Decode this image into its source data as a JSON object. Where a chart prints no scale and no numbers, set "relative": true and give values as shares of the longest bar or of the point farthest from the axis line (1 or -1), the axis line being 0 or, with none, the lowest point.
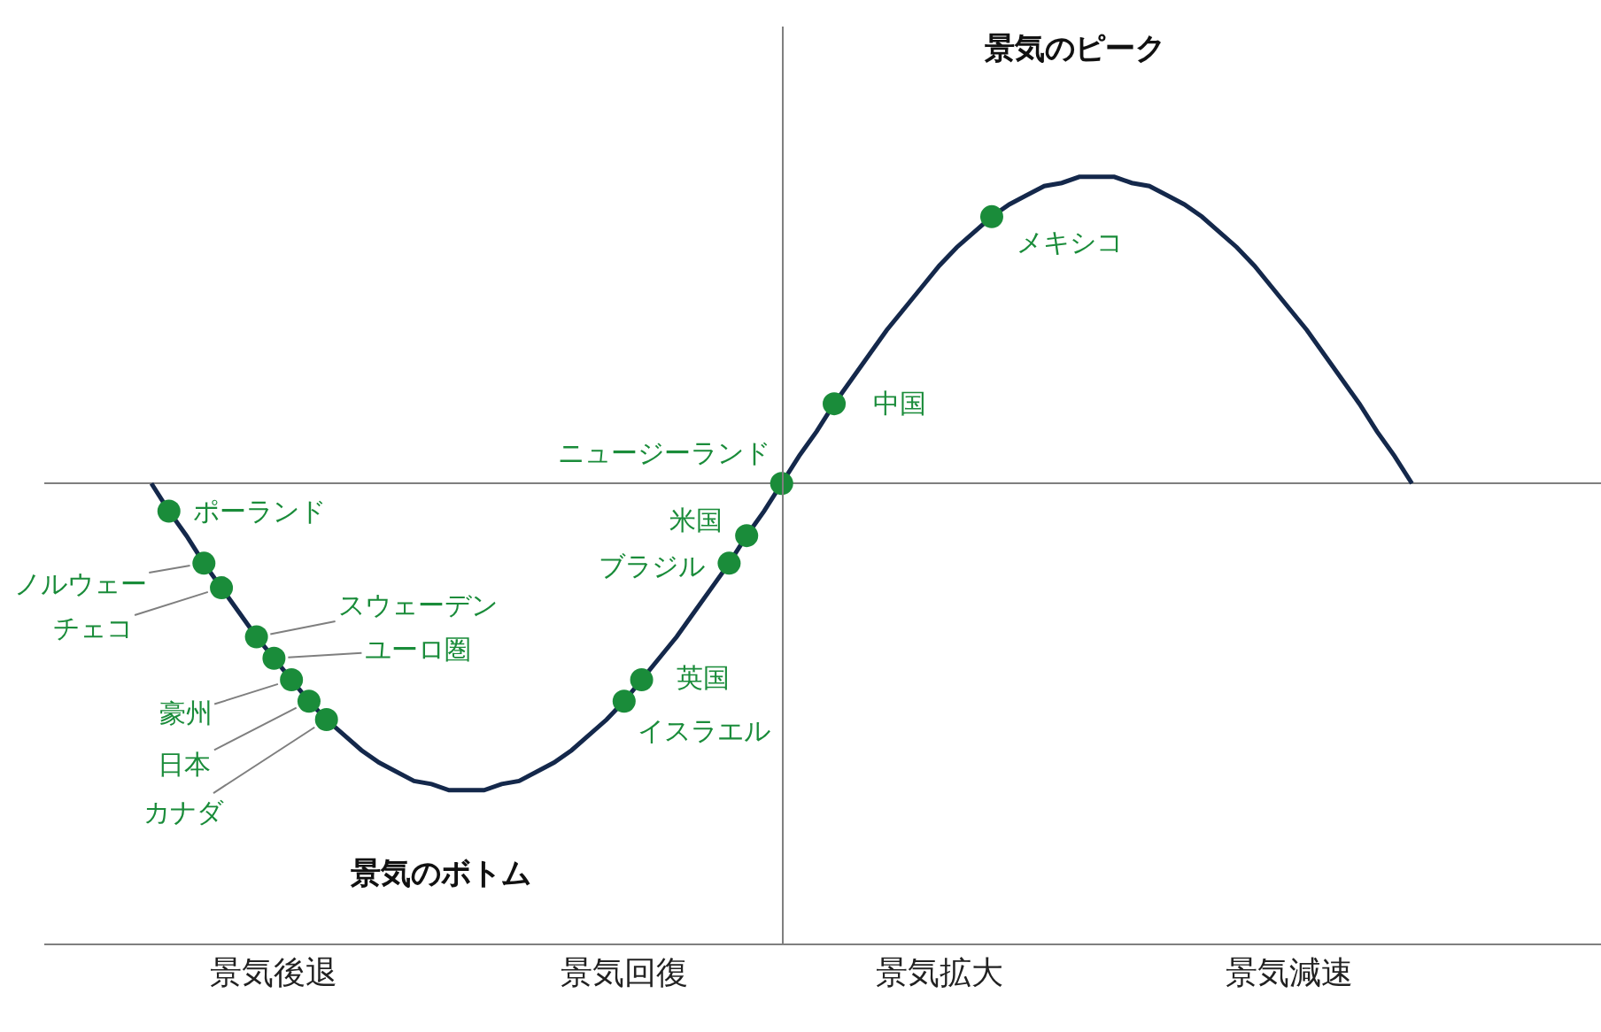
{
  "chart_data": {
    "type": "line",
    "relative": true,
    "grid": false,
    "tick_labels": "x",
    "ylim": [
      -1.5,
      1.49
    ],
    "categories": [
      null,
      null,
      null,
      null,
      null,
      null,
      null,
      "景気後退",
      null,
      null,
      null,
      null,
      null,
      null,
      null,
      null,
      null,
      null,
      null,
      null,
      null,
      null,
      null,
      null,
      null,
      null,
      null,
      "景気回復",
      null,
      null,
      null,
      null,
      null,
      null,
      null,
      null,
      null,
      null,
      null,
      null,
      null,
      null,
      null,
      null,
      null,
      "景気拡大",
      null,
      null,
      null,
      null,
      null,
      null,
      null,
      null,
      null,
      null,
      null,
      null,
      null,
      null,
      null,
      null,
      null,
      null,
      null,
      "景気減速",
      null,
      null,
      null,
      null,
      null,
      null,
      null
    ],
    "series": [
      {
        "color": "#14284b",
        "marker": "none",
        "values": [
          0,
          -0.09,
          -0.17,
          -0.26,
          -0.34,
          -0.42,
          -0.5,
          -0.57,
          -0.64,
          -0.71,
          -0.77,
          -0.82,
          -0.87,
          -0.91,
          -0.94,
          -0.97,
          -0.98,
          -1,
          -1,
          -1,
          -0.98,
          -0.97,
          -0.94,
          -0.91,
          -0.87,
          -0.82,
          -0.77,
          -0.71,
          -0.64,
          -0.57,
          -0.5,
          -0.42,
          -0.34,
          -0.26,
          -0.17,
          -0.09,
          0,
          0.09,
          0.17,
          0.26,
          0.34,
          0.42,
          0.5,
          0.57,
          0.64,
          0.71,
          0.77,
          0.82,
          0.87,
          0.91,
          0.94,
          0.97,
          0.98,
          1,
          1,
          1,
          0.98,
          0.97,
          0.94,
          0.91,
          0.87,
          0.82,
          0.77,
          0.71,
          0.64,
          0.57,
          0.5,
          0.42,
          0.34,
          0.26,
          0.17,
          0.09,
          0
        ]
      },
      {
        "type": "scatter",
        "name": "ポーランド",
        "color": "#1a8c3a",
        "marker": "circle",
        "values": [
          null,
          -0.09,
          null,
          null,
          null,
          null,
          null,
          null,
          null,
          null,
          null,
          null,
          null,
          null,
          null,
          null,
          null,
          null,
          null,
          null,
          null,
          null,
          null,
          null,
          null,
          null,
          null,
          null,
          null,
          null,
          null,
          null,
          null,
          null,
          null,
          null,
          null,
          null,
          null,
          null,
          null,
          null,
          null,
          null,
          null,
          null,
          null,
          null,
          null,
          null,
          null,
          null,
          null,
          null,
          null,
          null,
          null,
          null,
          null,
          null,
          null,
          null,
          null,
          null,
          null,
          null,
          null,
          null,
          null,
          null,
          null,
          null,
          null
        ]
      },
      {
        "type": "scatter",
        "name": "ノルウェー",
        "color": "#1a8c3a",
        "marker": "circle",
        "values": [
          null,
          null,
          null,
          -0.26,
          null,
          null,
          null,
          null,
          null,
          null,
          null,
          null,
          null,
          null,
          null,
          null,
          null,
          null,
          null,
          null,
          null,
          null,
          null,
          null,
          null,
          null,
          null,
          null,
          null,
          null,
          null,
          null,
          null,
          null,
          null,
          null,
          null,
          null,
          null,
          null,
          null,
          null,
          null,
          null,
          null,
          null,
          null,
          null,
          null,
          null,
          null,
          null,
          null,
          null,
          null,
          null,
          null,
          null,
          null,
          null,
          null,
          null,
          null,
          null,
          null,
          null,
          null,
          null,
          null,
          null,
          null,
          null,
          null
        ]
      },
      {
        "type": "scatter",
        "name": "チェコ",
        "color": "#1a8c3a",
        "marker": "circle",
        "values": [
          null,
          null,
          null,
          null,
          -0.34,
          null,
          null,
          null,
          null,
          null,
          null,
          null,
          null,
          null,
          null,
          null,
          null,
          null,
          null,
          null,
          null,
          null,
          null,
          null,
          null,
          null,
          null,
          null,
          null,
          null,
          null,
          null,
          null,
          null,
          null,
          null,
          null,
          null,
          null,
          null,
          null,
          null,
          null,
          null,
          null,
          null,
          null,
          null,
          null,
          null,
          null,
          null,
          null,
          null,
          null,
          null,
          null,
          null,
          null,
          null,
          null,
          null,
          null,
          null,
          null,
          null,
          null,
          null,
          null,
          null,
          null,
          null,
          null
        ]
      },
      {
        "type": "scatter",
        "name": "スウェーデン",
        "color": "#1a8c3a",
        "marker": "circle",
        "values": [
          null,
          null,
          null,
          null,
          null,
          null,
          -0.5,
          null,
          null,
          null,
          null,
          null,
          null,
          null,
          null,
          null,
          null,
          null,
          null,
          null,
          null,
          null,
          null,
          null,
          null,
          null,
          null,
          null,
          null,
          null,
          null,
          null,
          null,
          null,
          null,
          null,
          null,
          null,
          null,
          null,
          null,
          null,
          null,
          null,
          null,
          null,
          null,
          null,
          null,
          null,
          null,
          null,
          null,
          null,
          null,
          null,
          null,
          null,
          null,
          null,
          null,
          null,
          null,
          null,
          null,
          null,
          null,
          null,
          null,
          null,
          null,
          null,
          null
        ]
      },
      {
        "type": "scatter",
        "name": "ユーロ圏",
        "color": "#1a8c3a",
        "marker": "circle",
        "values": [
          null,
          null,
          null,
          null,
          null,
          null,
          null,
          -0.57,
          null,
          null,
          null,
          null,
          null,
          null,
          null,
          null,
          null,
          null,
          null,
          null,
          null,
          null,
          null,
          null,
          null,
          null,
          null,
          null,
          null,
          null,
          null,
          null,
          null,
          null,
          null,
          null,
          null,
          null,
          null,
          null,
          null,
          null,
          null,
          null,
          null,
          null,
          null,
          null,
          null,
          null,
          null,
          null,
          null,
          null,
          null,
          null,
          null,
          null,
          null,
          null,
          null,
          null,
          null,
          null,
          null,
          null,
          null,
          null,
          null,
          null,
          null,
          null,
          null
        ]
      },
      {
        "type": "scatter",
        "name": "豪州",
        "color": "#1a8c3a",
        "marker": "circle",
        "values": [
          null,
          null,
          null,
          null,
          null,
          null,
          null,
          null,
          -0.64,
          null,
          null,
          null,
          null,
          null,
          null,
          null,
          null,
          null,
          null,
          null,
          null,
          null,
          null,
          null,
          null,
          null,
          null,
          null,
          null,
          null,
          null,
          null,
          null,
          null,
          null,
          null,
          null,
          null,
          null,
          null,
          null,
          null,
          null,
          null,
          null,
          null,
          null,
          null,
          null,
          null,
          null,
          null,
          null,
          null,
          null,
          null,
          null,
          null,
          null,
          null,
          null,
          null,
          null,
          null,
          null,
          null,
          null,
          null,
          null,
          null,
          null,
          null,
          null
        ]
      },
      {
        "type": "scatter",
        "name": "日本",
        "color": "#1a8c3a",
        "marker": "circle",
        "values": [
          null,
          null,
          null,
          null,
          null,
          null,
          null,
          null,
          null,
          -0.71,
          null,
          null,
          null,
          null,
          null,
          null,
          null,
          null,
          null,
          null,
          null,
          null,
          null,
          null,
          null,
          null,
          null,
          null,
          null,
          null,
          null,
          null,
          null,
          null,
          null,
          null,
          null,
          null,
          null,
          null,
          null,
          null,
          null,
          null,
          null,
          null,
          null,
          null,
          null,
          null,
          null,
          null,
          null,
          null,
          null,
          null,
          null,
          null,
          null,
          null,
          null,
          null,
          null,
          null,
          null,
          null,
          null,
          null,
          null,
          null,
          null,
          null,
          null
        ]
      },
      {
        "type": "scatter",
        "name": "カナダ",
        "color": "#1a8c3a",
        "marker": "circle",
        "values": [
          null,
          null,
          null,
          null,
          null,
          null,
          null,
          null,
          null,
          null,
          -0.77,
          null,
          null,
          null,
          null,
          null,
          null,
          null,
          null,
          null,
          null,
          null,
          null,
          null,
          null,
          null,
          null,
          null,
          null,
          null,
          null,
          null,
          null,
          null,
          null,
          null,
          null,
          null,
          null,
          null,
          null,
          null,
          null,
          null,
          null,
          null,
          null,
          null,
          null,
          null,
          null,
          null,
          null,
          null,
          null,
          null,
          null,
          null,
          null,
          null,
          null,
          null,
          null,
          null,
          null,
          null,
          null,
          null,
          null,
          null,
          null,
          null,
          null
        ]
      },
      {
        "type": "scatter",
        "name": "イスラエル",
        "color": "#1a8c3a",
        "marker": "circle",
        "values": [
          null,
          null,
          null,
          null,
          null,
          null,
          null,
          null,
          null,
          null,
          null,
          null,
          null,
          null,
          null,
          null,
          null,
          null,
          null,
          null,
          null,
          null,
          null,
          null,
          null,
          null,
          null,
          -0.71,
          null,
          null,
          null,
          null,
          null,
          null,
          null,
          null,
          null,
          null,
          null,
          null,
          null,
          null,
          null,
          null,
          null,
          null,
          null,
          null,
          null,
          null,
          null,
          null,
          null,
          null,
          null,
          null,
          null,
          null,
          null,
          null,
          null,
          null,
          null,
          null,
          null,
          null,
          null,
          null,
          null,
          null,
          null,
          null,
          null
        ]
      },
      {
        "type": "scatter",
        "name": "英国",
        "color": "#1a8c3a",
        "marker": "circle",
        "values": [
          null,
          null,
          null,
          null,
          null,
          null,
          null,
          null,
          null,
          null,
          null,
          null,
          null,
          null,
          null,
          null,
          null,
          null,
          null,
          null,
          null,
          null,
          null,
          null,
          null,
          null,
          null,
          null,
          -0.64,
          null,
          null,
          null,
          null,
          null,
          null,
          null,
          null,
          null,
          null,
          null,
          null,
          null,
          null,
          null,
          null,
          null,
          null,
          null,
          null,
          null,
          null,
          null,
          null,
          null,
          null,
          null,
          null,
          null,
          null,
          null,
          null,
          null,
          null,
          null,
          null,
          null,
          null,
          null,
          null,
          null,
          null,
          null,
          null
        ]
      },
      {
        "type": "scatter",
        "name": "ブラジル",
        "color": "#1a8c3a",
        "marker": "circle",
        "values": [
          null,
          null,
          null,
          null,
          null,
          null,
          null,
          null,
          null,
          null,
          null,
          null,
          null,
          null,
          null,
          null,
          null,
          null,
          null,
          null,
          null,
          null,
          null,
          null,
          null,
          null,
          null,
          null,
          null,
          null,
          null,
          null,
          null,
          -0.26,
          null,
          null,
          null,
          null,
          null,
          null,
          null,
          null,
          null,
          null,
          null,
          null,
          null,
          null,
          null,
          null,
          null,
          null,
          null,
          null,
          null,
          null,
          null,
          null,
          null,
          null,
          null,
          null,
          null,
          null,
          null,
          null,
          null,
          null,
          null,
          null,
          null,
          null,
          null
        ]
      },
      {
        "type": "scatter",
        "name": "米国",
        "color": "#1a8c3a",
        "marker": "circle",
        "values": [
          null,
          null,
          null,
          null,
          null,
          null,
          null,
          null,
          null,
          null,
          null,
          null,
          null,
          null,
          null,
          null,
          null,
          null,
          null,
          null,
          null,
          null,
          null,
          null,
          null,
          null,
          null,
          null,
          null,
          null,
          null,
          null,
          null,
          null,
          -0.17,
          null,
          null,
          null,
          null,
          null,
          null,
          null,
          null,
          null,
          null,
          null,
          null,
          null,
          null,
          null,
          null,
          null,
          null,
          null,
          null,
          null,
          null,
          null,
          null,
          null,
          null,
          null,
          null,
          null,
          null,
          null,
          null,
          null,
          null,
          null,
          null,
          null,
          null
        ]
      },
      {
        "type": "scatter",
        "name": "ニュージーランド",
        "color": "#1a8c3a",
        "marker": "circle",
        "values": [
          null,
          null,
          null,
          null,
          null,
          null,
          null,
          null,
          null,
          null,
          null,
          null,
          null,
          null,
          null,
          null,
          null,
          null,
          null,
          null,
          null,
          null,
          null,
          null,
          null,
          null,
          null,
          null,
          null,
          null,
          null,
          null,
          null,
          null,
          null,
          null,
          0,
          null,
          null,
          null,
          null,
          null,
          null,
          null,
          null,
          null,
          null,
          null,
          null,
          null,
          null,
          null,
          null,
          null,
          null,
          null,
          null,
          null,
          null,
          null,
          null,
          null,
          null,
          null,
          null,
          null,
          null,
          null,
          null,
          null,
          null,
          null,
          null
        ]
      },
      {
        "type": "scatter",
        "name": "中国",
        "color": "#1a8c3a",
        "marker": "circle",
        "values": [
          null,
          null,
          null,
          null,
          null,
          null,
          null,
          null,
          null,
          null,
          null,
          null,
          null,
          null,
          null,
          null,
          null,
          null,
          null,
          null,
          null,
          null,
          null,
          null,
          null,
          null,
          null,
          null,
          null,
          null,
          null,
          null,
          null,
          null,
          null,
          null,
          null,
          null,
          null,
          0.26,
          null,
          null,
          null,
          null,
          null,
          null,
          null,
          null,
          null,
          null,
          null,
          null,
          null,
          null,
          null,
          null,
          null,
          null,
          null,
          null,
          null,
          null,
          null,
          null,
          null,
          null,
          null,
          null,
          null,
          null,
          null,
          null,
          null
        ]
      },
      {
        "type": "scatter",
        "name": "メキシコ",
        "color": "#1a8c3a",
        "marker": "circle",
        "values": [
          null,
          null,
          null,
          null,
          null,
          null,
          null,
          null,
          null,
          null,
          null,
          null,
          null,
          null,
          null,
          null,
          null,
          null,
          null,
          null,
          null,
          null,
          null,
          null,
          null,
          null,
          null,
          null,
          null,
          null,
          null,
          null,
          null,
          null,
          null,
          null,
          null,
          null,
          null,
          null,
          null,
          null,
          null,
          null,
          null,
          null,
          null,
          null,
          0.87,
          null,
          null,
          null,
          null,
          null,
          null,
          null,
          null,
          null,
          null,
          null,
          null,
          null,
          null,
          null,
          null,
          null,
          null,
          null,
          null,
          null,
          null,
          null,
          null
        ]
      }
    ],
    "annotations": [
      "景気のピーク",
      "景気のボトム"
    ]
  }
}
